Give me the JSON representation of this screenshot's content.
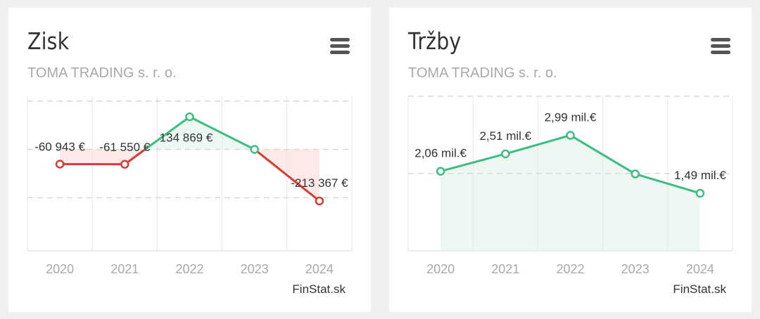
{
  "colors": {
    "positive": "#3dbd82",
    "negative": "#d83a34",
    "positive_fill": "#eef8f3",
    "negative_fill": "#fde9e8",
    "grid": "#e6e6e6",
    "dashed": "#d8d8d8",
    "axis_text": "#a9a9a9",
    "label_text": "#333333"
  },
  "cards": [
    {
      "title": "Zisk",
      "subtitle": "TOMA TRADING s. r. o.",
      "credit": "FinStat.sk",
      "menu_icon": "hamburger-menu-icon",
      "chart_data": {
        "type": "line",
        "categories": [
          "2020",
          "2021",
          "2022",
          "2023",
          "2024"
        ],
        "values": [
          -60943,
          -61550,
          134869,
          0,
          -213367
        ],
        "data_labels": [
          "-60 943 €",
          "-61 550 €",
          "134 869 €",
          "",
          "-213 367 €"
        ],
        "color_rule": "green above zero, red below zero",
        "ylim": [
          -420000,
          220000
        ],
        "dashed_gridlines": [
          200000,
          0,
          -200000
        ],
        "title": "",
        "xlabel": "",
        "ylabel": ""
      }
    },
    {
      "title": "Tržby",
      "subtitle": "TOMA TRADING s. r. o.",
      "credit": "FinStat.sk",
      "menu_icon": "hamburger-menu-icon",
      "chart_data": {
        "type": "area",
        "categories": [
          "2020",
          "2021",
          "2022",
          "2023",
          "2024"
        ],
        "values": [
          2.06,
          2.51,
          2.99,
          1.99,
          1.49
        ],
        "unit": "mil.€",
        "data_labels": [
          "2,06 mil.€",
          "2,51 mil.€",
          "2,99 mil.€",
          "",
          "1,49 mil.€"
        ],
        "ylim": [
          0,
          4.0
        ],
        "dashed_gridlines": [
          4.0,
          2.0
        ],
        "title": "",
        "xlabel": "",
        "ylabel": ""
      }
    }
  ]
}
